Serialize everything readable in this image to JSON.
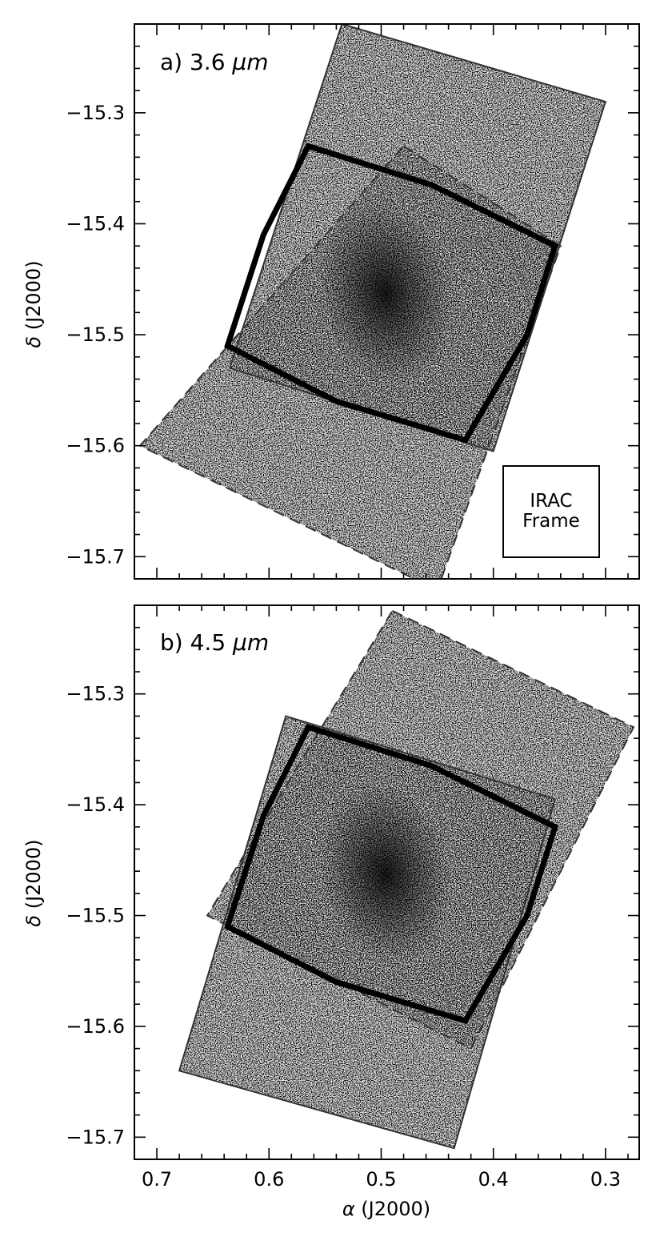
{
  "chart_data": [
    {
      "type": "image",
      "panel_label": "a) 3.6 μm",
      "panel_prefix": "a) 3.6",
      "panel_unit": "μm",
      "inset_label_line1": "IRAC",
      "inset_label_line2": "Frame",
      "ylabel_symbol": "δ",
      "ylabel_text": "(J2000)",
      "xlabel_symbol": "",
      "xlabel_text": "",
      "xlim": [
        0.72,
        0.27
      ],
      "ylim": [
        -15.72,
        -15.22
      ],
      "x_ticks": [],
      "y_ticks": [
        "−15.3",
        "−15.4",
        "−15.5",
        "−15.6",
        "−15.7"
      ],
      "overlays": [
        {
          "name": "solid frame",
          "style": "thin solid",
          "points": [
            [
              0.535,
              -15.22
            ],
            [
              0.3,
              -15.29
            ],
            [
              0.4,
              -15.605
            ],
            [
              0.635,
              -15.53
            ]
          ]
        },
        {
          "name": "dashed frame",
          "style": "dashed",
          "points": [
            [
              0.48,
              -15.33
            ],
            [
              0.34,
              -15.42
            ],
            [
              0.45,
              -15.73
            ],
            [
              0.715,
              -15.6
            ]
          ]
        },
        {
          "name": "thick outline",
          "style": "thick solid",
          "points": [
            [
              0.565,
              -15.33
            ],
            [
              0.455,
              -15.365
            ],
            [
              0.345,
              -15.42
            ],
            [
              0.37,
              -15.5
            ],
            [
              0.425,
              -15.595
            ],
            [
              0.54,
              -15.56
            ],
            [
              0.637,
              -15.51
            ],
            [
              0.605,
              -15.41
            ]
          ]
        }
      ]
    },
    {
      "type": "image",
      "panel_label": "b) 4.5 μm",
      "panel_prefix": "b) 4.5",
      "panel_unit": "μm",
      "ylabel_symbol": "δ",
      "ylabel_text": "(J2000)",
      "xlabel_symbol": "α",
      "xlabel_text": "(J2000)",
      "xlim": [
        0.72,
        0.27
      ],
      "ylim": [
        -15.72,
        -15.22
      ],
      "x_ticks": [
        "0.7",
        "0.6",
        "0.5",
        "0.4",
        "0.3"
      ],
      "y_ticks": [
        "−15.3",
        "−15.4",
        "−15.5",
        "−15.6",
        "−15.7"
      ],
      "overlays": [
        {
          "name": "solid frame",
          "style": "thin solid",
          "points": [
            [
              0.585,
              -15.32
            ],
            [
              0.345,
              -15.395
            ],
            [
              0.435,
              -15.71
            ],
            [
              0.68,
              -15.64
            ]
          ]
        },
        {
          "name": "dashed frame",
          "style": "dashed",
          "points": [
            [
              0.49,
              -15.225
            ],
            [
              0.275,
              -15.33
            ],
            [
              0.42,
              -15.62
            ],
            [
              0.655,
              -15.5
            ]
          ]
        },
        {
          "name": "thick outline",
          "style": "thick solid",
          "points": [
            [
              0.565,
              -15.33
            ],
            [
              0.455,
              -15.365
            ],
            [
              0.345,
              -15.42
            ],
            [
              0.37,
              -15.5
            ],
            [
              0.425,
              -15.595
            ],
            [
              0.54,
              -15.56
            ],
            [
              0.637,
              -15.51
            ],
            [
              0.605,
              -15.41
            ]
          ]
        }
      ]
    }
  ]
}
